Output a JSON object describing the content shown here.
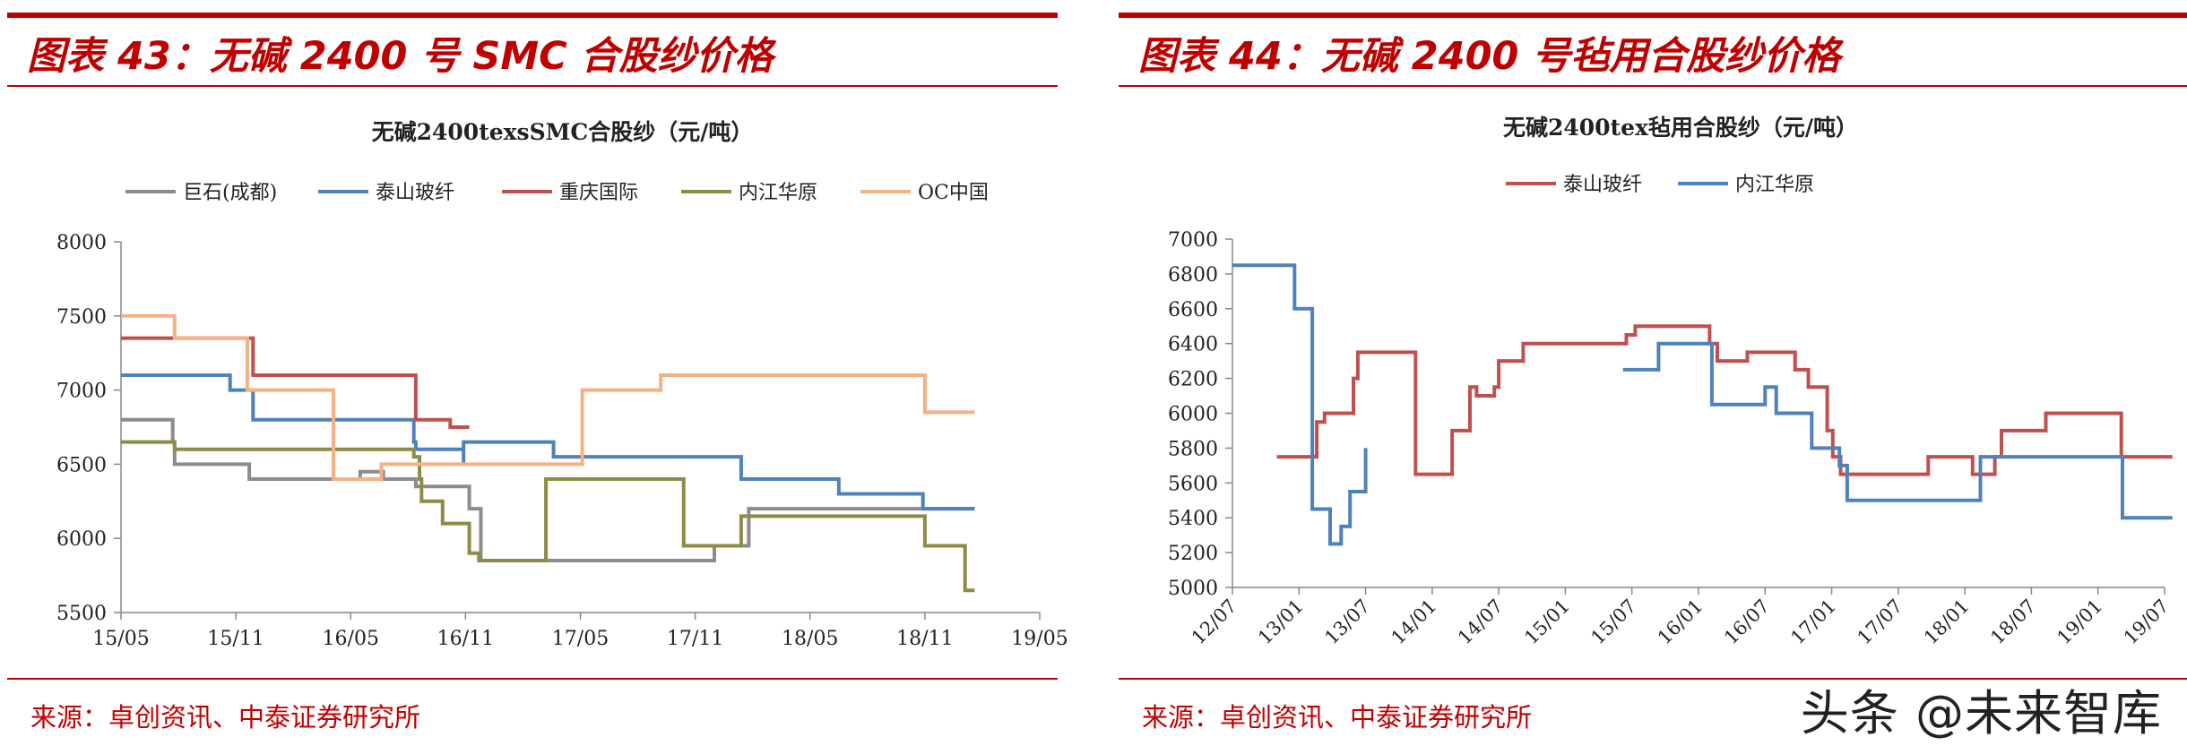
{
  "panels": [
    {
      "heading": "图表 43：无碱 2400 号 SMC 合股纱价格",
      "source": "来源：卓创资讯、中泰证券研究所"
    },
    {
      "heading": "图表 44：无碱 2400 号毡用合股纱价格",
      "source": "来源：卓创资讯、中泰证券研究所"
    }
  ],
  "watermark": "头条 @未来智库",
  "chart_data": [
    {
      "type": "line",
      "title": "无碱2400texsSMC合股纱（元/吨）",
      "xlabel": "",
      "ylabel": "",
      "ylim": [
        5500,
        8000
      ],
      "yticks": [
        5500,
        6000,
        6500,
        7000,
        7500,
        8000
      ],
      "xlim": [
        0,
        48
      ],
      "xticks": [
        {
          "x": 0,
          "label": "15/05"
        },
        {
          "x": 6,
          "label": "15/11"
        },
        {
          "x": 12,
          "label": "16/05"
        },
        {
          "x": 18,
          "label": "16/11"
        },
        {
          "x": 24,
          "label": "17/05"
        },
        {
          "x": 30,
          "label": "17/11"
        },
        {
          "x": 36,
          "label": "18/05"
        },
        {
          "x": 42,
          "label": "18/11"
        },
        {
          "x": 48,
          "label": "19/05"
        }
      ],
      "grid": false,
      "legend_position": "top",
      "series": [
        {
          "name": "巨石(成都)",
          "color": "#8c8c8c",
          "points": [
            [
              0,
              6800
            ],
            [
              2.7,
              6800
            ],
            [
              2.7,
              6650
            ],
            [
              2.8,
              6650
            ],
            [
              2.8,
              6500
            ],
            [
              6.7,
              6500
            ],
            [
              6.7,
              6400
            ],
            [
              12.5,
              6400
            ],
            [
              12.5,
              6450
            ],
            [
              13.7,
              6450
            ],
            [
              13.7,
              6400
            ],
            [
              15.4,
              6400
            ],
            [
              15.4,
              6350
            ],
            [
              18.2,
              6350
            ],
            [
              18.2,
              6200
            ],
            [
              18.8,
              6200
            ],
            [
              18.8,
              5850
            ],
            [
              31,
              5850
            ],
            [
              31,
              5950
            ],
            [
              32.8,
              5950
            ],
            [
              32.8,
              6200
            ],
            [
              44.6,
              6200
            ]
          ]
        },
        {
          "name": "泰山玻纤",
          "color": "#4f81bd",
          "points": [
            [
              0,
              7100
            ],
            [
              5.7,
              7100
            ],
            [
              5.7,
              7000
            ],
            [
              6.9,
              7000
            ],
            [
              6.9,
              6800
            ],
            [
              15.3,
              6800
            ],
            [
              15.3,
              6650
            ],
            [
              15.4,
              6650
            ],
            [
              15.4,
              6600
            ],
            [
              17.9,
              6600
            ],
            [
              17.9,
              6500
            ],
            [
              17.9,
              6500
            ],
            [
              17.9,
              6650
            ],
            [
              22.6,
              6650
            ],
            [
              22.6,
              6550
            ],
            [
              32.4,
              6550
            ],
            [
              32.4,
              6400
            ],
            [
              37.5,
              6400
            ],
            [
              37.5,
              6300
            ],
            [
              41.9,
              6300
            ],
            [
              41.9,
              6200
            ],
            [
              44.6,
              6200
            ]
          ]
        },
        {
          "name": "重庆国际",
          "color": "#c0504d",
          "points": [
            [
              0,
              7350
            ],
            [
              6.9,
              7350
            ],
            [
              6.9,
              7100
            ],
            [
              15.4,
              7100
            ],
            [
              15.4,
              6800
            ],
            [
              17.2,
              6800
            ],
            [
              17.2,
              6750
            ],
            [
              18.2,
              6750
            ]
          ]
        },
        {
          "name": "内江华原",
          "color": "#8c8c47",
          "points": [
            [
              0,
              6650
            ],
            [
              2.8,
              6650
            ],
            [
              2.8,
              6600
            ],
            [
              15.3,
              6600
            ],
            [
              15.3,
              6550
            ],
            [
              15.6,
              6550
            ],
            [
              15.6,
              6400
            ],
            [
              15.7,
              6400
            ],
            [
              15.7,
              6250
            ],
            [
              16.8,
              6250
            ],
            [
              16.8,
              6100
            ],
            [
              18.2,
              6100
            ],
            [
              18.2,
              5900
            ],
            [
              18.7,
              5900
            ],
            [
              18.7,
              5850
            ],
            [
              22.2,
              5850
            ],
            [
              22.2,
              6400
            ],
            [
              29.4,
              6400
            ],
            [
              29.4,
              5950
            ],
            [
              32.4,
              5950
            ],
            [
              32.4,
              6150
            ],
            [
              42,
              6150
            ],
            [
              42,
              5950
            ],
            [
              44.1,
              5950
            ],
            [
              44.1,
              5650
            ],
            [
              44.6,
              5650
            ]
          ]
        },
        {
          "name": "OC中国",
          "color": "#f4b183",
          "points": [
            [
              0,
              7500
            ],
            [
              2.8,
              7500
            ],
            [
              2.8,
              7350
            ],
            [
              6.6,
              7350
            ],
            [
              6.6,
              7000
            ],
            [
              11.1,
              7000
            ],
            [
              11.1,
              6400
            ],
            [
              13.6,
              6400
            ],
            [
              13.6,
              6500
            ],
            [
              24.1,
              6500
            ],
            [
              24.1,
              7000
            ],
            [
              28.2,
              7000
            ],
            [
              28.2,
              7100
            ],
            [
              42,
              7100
            ],
            [
              42,
              6850
            ],
            [
              44.6,
              6850
            ]
          ]
        }
      ]
    },
    {
      "type": "line",
      "title": "无碱2400tex毡用合股纱（元/吨）",
      "xlabel": "",
      "ylabel": "",
      "ylim": [
        5000,
        7000
      ],
      "yticks": [
        5000,
        5200,
        5400,
        5600,
        5800,
        6000,
        6200,
        6400,
        6600,
        6800,
        7000
      ],
      "xlim": [
        0,
        84
      ],
      "xticks": [
        {
          "x": 0,
          "label": "12/07"
        },
        {
          "x": 6,
          "label": "13/01"
        },
        {
          "x": 12,
          "label": "13/07"
        },
        {
          "x": 18,
          "label": "14/01"
        },
        {
          "x": 24,
          "label": "14/07"
        },
        {
          "x": 30,
          "label": "15/01"
        },
        {
          "x": 36,
          "label": "15/07"
        },
        {
          "x": 42,
          "label": "16/01"
        },
        {
          "x": 48,
          "label": "16/07"
        },
        {
          "x": 54,
          "label": "17/01"
        },
        {
          "x": 60,
          "label": "17/07"
        },
        {
          "x": 66,
          "label": "18/01"
        },
        {
          "x": 72,
          "label": "18/07"
        },
        {
          "x": 78,
          "label": "19/01"
        },
        {
          "x": 84,
          "label": "19/07"
        }
      ],
      "grid": false,
      "legend_position": "top",
      "series": [
        {
          "name": "泰山玻纤",
          "color": "#c0504d",
          "points": [
            [
              4,
              5750
            ],
            [
              7.6,
              5750
            ],
            [
              7.6,
              5950
            ],
            [
              8.3,
              5950
            ],
            [
              8.3,
              6000
            ],
            [
              10.9,
              6000
            ],
            [
              10.9,
              6200
            ],
            [
              11.3,
              6200
            ],
            [
              11.3,
              6350
            ],
            [
              16.5,
              6350
            ],
            [
              16.5,
              5650
            ],
            [
              19.8,
              5650
            ],
            [
              19.8,
              5900
            ],
            [
              21.4,
              5900
            ],
            [
              21.4,
              6150
            ],
            [
              22,
              6150
            ],
            [
              22,
              6100
            ],
            [
              23.6,
              6100
            ],
            [
              23.6,
              6150
            ],
            [
              24,
              6150
            ],
            [
              24,
              6300
            ],
            [
              26.2,
              6300
            ],
            [
              26.2,
              6400
            ],
            [
              35.5,
              6400
            ],
            [
              35.5,
              6450
            ],
            [
              36.3,
              6450
            ],
            [
              36.3,
              6500
            ],
            [
              43,
              6500
            ],
            [
              43,
              6400
            ],
            [
              43.7,
              6400
            ],
            [
              43.7,
              6300
            ],
            [
              46.4,
              6300
            ],
            [
              46.4,
              6350
            ],
            [
              50.7,
              6350
            ],
            [
              50.7,
              6250
            ],
            [
              51.9,
              6250
            ],
            [
              51.9,
              6150
            ],
            [
              53.6,
              6150
            ],
            [
              53.6,
              5900
            ],
            [
              54.1,
              5900
            ],
            [
              54.1,
              5750
            ],
            [
              54.8,
              5750
            ],
            [
              54.8,
              5650
            ],
            [
              62.7,
              5650
            ],
            [
              62.7,
              5750
            ],
            [
              66.7,
              5750
            ],
            [
              66.7,
              5650
            ],
            [
              68.7,
              5650
            ],
            [
              68.7,
              5750
            ],
            [
              69.3,
              5750
            ],
            [
              69.3,
              5900
            ],
            [
              73.3,
              5900
            ],
            [
              73.3,
              6000
            ],
            [
              80.1,
              6000
            ],
            [
              80.1,
              5750
            ],
            [
              84.7,
              5750
            ]
          ]
        },
        {
          "name": "内江华原",
          "color": "#4f81bd",
          "points": [
            [
              0,
              6850
            ],
            [
              5.6,
              6850
            ],
            [
              5.6,
              6600
            ],
            [
              7.2,
              6600
            ],
            [
              7.2,
              5450
            ],
            [
              8.8,
              5450
            ],
            [
              8.8,
              5250
            ],
            [
              9.8,
              5250
            ],
            [
              9.8,
              5350
            ],
            [
              10.6,
              5350
            ],
            [
              10.6,
              5550
            ],
            [
              12,
              5550
            ],
            [
              12,
              5800
            ]
          ]
        },
        {
          "name": "内江华原",
          "color": "#4f81bd",
          "legend": false,
          "points": [
            [
              35.2,
              6250
            ],
            [
              38.4,
              6250
            ],
            [
              38.4,
              6400
            ],
            [
              43.2,
              6400
            ],
            [
              43.2,
              6050
            ],
            [
              48,
              6050
            ],
            [
              48,
              6150
            ],
            [
              49,
              6150
            ],
            [
              49,
              6000
            ],
            [
              52.2,
              6000
            ],
            [
              52.2,
              5800
            ],
            [
              54.7,
              5800
            ],
            [
              54.7,
              5700
            ],
            [
              55.4,
              5700
            ],
            [
              55.4,
              5500
            ],
            [
              67.4,
              5500
            ],
            [
              67.4,
              5750
            ],
            [
              80.2,
              5750
            ],
            [
              80.2,
              5400
            ],
            [
              84.7,
              5400
            ]
          ]
        }
      ]
    }
  ]
}
